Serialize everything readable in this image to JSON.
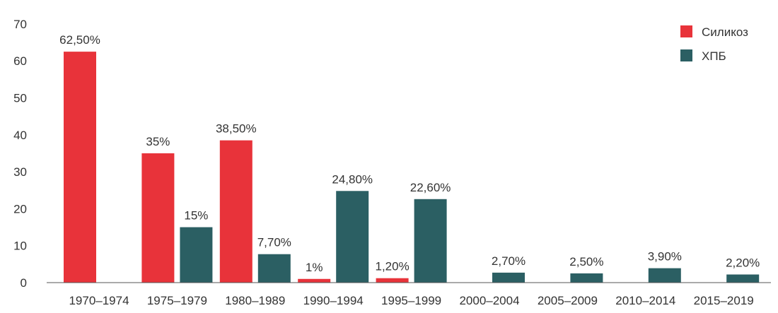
{
  "chart_data": {
    "type": "bar",
    "title": "",
    "xlabel": "",
    "ylabel": "",
    "ylim": [
      0,
      70
    ],
    "yticks": [
      0,
      10,
      20,
      30,
      40,
      50,
      60,
      70
    ],
    "grid": false,
    "legend_position": "top-right",
    "categories": [
      "1970–1974",
      "1975–1979",
      "1980–1989",
      "1990–1994",
      "1995–1999",
      "2000–2004",
      "2005–2009",
      "2010–2014",
      "2015–2019"
    ],
    "series": [
      {
        "name": "Силикоз",
        "color": "#e8333a",
        "values": [
          62.5,
          35,
          38.5,
          1,
          1.2,
          null,
          null,
          null,
          null
        ],
        "labels": [
          "62,50%",
          "35%",
          "38,50%",
          "1%",
          "1,20%",
          null,
          null,
          null,
          null
        ]
      },
      {
        "name": "ХПБ",
        "color": "#2b5f63",
        "values": [
          null,
          15,
          7.7,
          24.8,
          22.6,
          2.7,
          2.5,
          3.9,
          2.2
        ],
        "labels": [
          null,
          "15%",
          "7,70%",
          "24,80%",
          "22,60%",
          "2,70%",
          "2,50%",
          "3,90%",
          "2,20%"
        ]
      }
    ]
  }
}
